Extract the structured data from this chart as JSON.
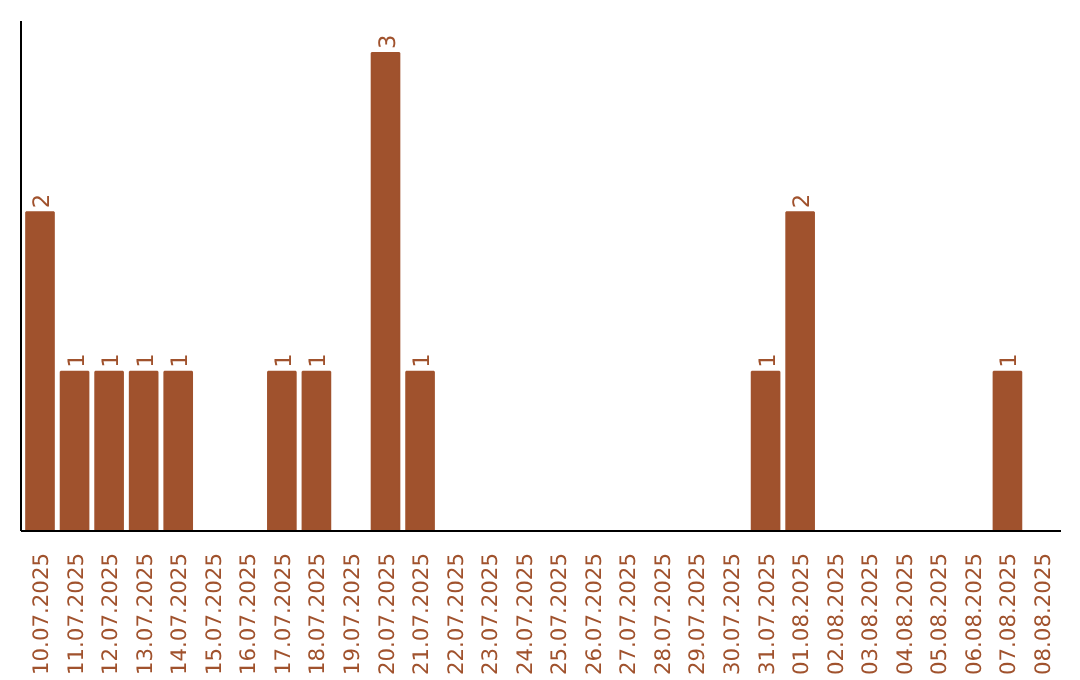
{
  "chart_data": {
    "type": "bar",
    "categories": [
      "10.07.2025",
      "11.07.2025",
      "12.07.2025",
      "13.07.2025",
      "14.07.2025",
      "15.07.2025",
      "16.07.2025",
      "17.07.2025",
      "18.07.2025",
      "19.07.2025",
      "20.07.2025",
      "21.07.2025",
      "22.07.2025",
      "23.07.2025",
      "24.07.2025",
      "25.07.2025",
      "26.07.2025",
      "27.07.2025",
      "28.07.2025",
      "29.07.2025",
      "30.07.2025",
      "31.07.2025",
      "01.08.2025",
      "02.08.2025",
      "03.08.2025",
      "04.08.2025",
      "05.08.2025",
      "06.08.2025",
      "07.08.2025",
      "08.08.2025"
    ],
    "values": [
      2,
      1,
      1,
      1,
      1,
      0,
      0,
      1,
      1,
      0,
      3,
      1,
      0,
      0,
      0,
      0,
      0,
      0,
      0,
      0,
      0,
      1,
      2,
      0,
      0,
      0,
      0,
      0,
      1,
      0
    ],
    "value_labels": [
      "2",
      "1",
      "1",
      "1",
      "1",
      null,
      null,
      "1",
      "1",
      null,
      "3",
      "1",
      null,
      null,
      null,
      null,
      null,
      null,
      null,
      null,
      null,
      "1",
      "2",
      null,
      null,
      null,
      null,
      null,
      "1",
      null
    ],
    "color": "#a0522d",
    "ylim": [
      0,
      3.2
    ],
    "tick_labels": "x",
    "grid": false
  }
}
